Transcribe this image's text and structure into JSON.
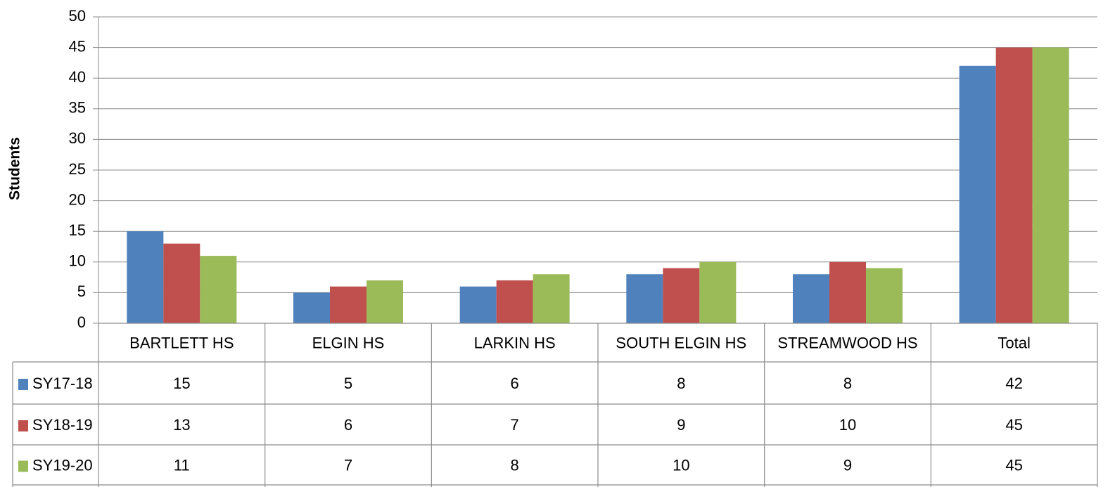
{
  "chart_data": {
    "type": "bar",
    "y_label": "Students",
    "categories": [
      "BARTLETT HS",
      "ELGIN HS",
      "LARKIN HS",
      "SOUTH ELGIN HS",
      "STREAMWOOD HS",
      "Total"
    ],
    "series": [
      {
        "name": "SY17-18",
        "color": "#4f81bd",
        "values": [
          15,
          5,
          6,
          8,
          8,
          42
        ]
      },
      {
        "name": "SY18-19",
        "color": "#c0504d",
        "values": [
          13,
          6,
          7,
          9,
          10,
          45
        ]
      },
      {
        "name": "SY19-20",
        "color": "#9bbb59",
        "values": [
          11,
          7,
          8,
          10,
          9,
          45
        ]
      }
    ],
    "ylim": [
      0,
      50
    ],
    "yticks": [
      0,
      5,
      10,
      15,
      20,
      25,
      30,
      35,
      40,
      45,
      50
    ],
    "grid": true,
    "data_table": true
  }
}
